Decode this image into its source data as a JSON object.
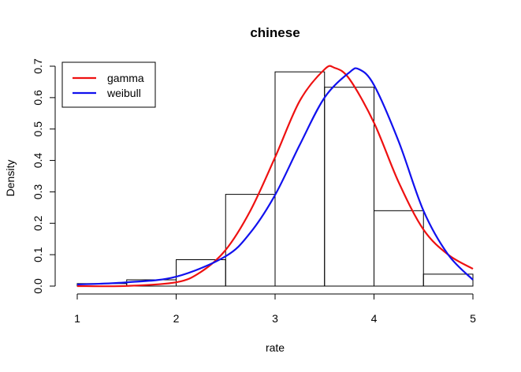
{
  "chart_data": {
    "type": "histogram",
    "title": "chinese",
    "xlabel": "rate",
    "ylabel": "Density",
    "xlim": [
      1,
      5
    ],
    "ylim": [
      0,
      0.7
    ],
    "x_ticks": [
      "1",
      "2",
      "3",
      "4",
      "5"
    ],
    "y_ticks": [
      "0.0",
      "0.1",
      "0.2",
      "0.3",
      "0.4",
      "0.5",
      "0.6",
      "0.7"
    ],
    "bins": [
      {
        "from": 1.0,
        "to": 1.5,
        "density": 0.008
      },
      {
        "from": 1.5,
        "to": 2.0,
        "density": 0.02
      },
      {
        "from": 2.0,
        "to": 2.5,
        "density": 0.084
      },
      {
        "from": 2.5,
        "to": 3.0,
        "density": 0.292
      },
      {
        "from": 3.0,
        "to": 3.5,
        "density": 0.682
      },
      {
        "from": 3.5,
        "to": 4.0,
        "density": 0.633
      },
      {
        "from": 4.0,
        "to": 4.5,
        "density": 0.24
      },
      {
        "from": 4.5,
        "to": 5.0,
        "density": 0.038
      }
    ],
    "series": [
      {
        "name": "gamma",
        "color": "#ee1111",
        "x": [
          1.0,
          1.5,
          2.0,
          2.25,
          2.5,
          2.75,
          3.0,
          3.25,
          3.5,
          3.6,
          3.75,
          4.0,
          4.25,
          4.5,
          4.75,
          5.0
        ],
        "y": [
          0.0,
          0.0005,
          0.012,
          0.045,
          0.115,
          0.24,
          0.41,
          0.59,
          0.69,
          0.695,
          0.66,
          0.52,
          0.33,
          0.18,
          0.1,
          0.055
        ]
      },
      {
        "name": "weibull",
        "color": "#1111ee",
        "x": [
          1.0,
          1.5,
          2.0,
          2.5,
          2.75,
          3.0,
          3.25,
          3.5,
          3.75,
          3.85,
          4.0,
          4.25,
          4.5,
          4.75,
          5.0
        ],
        "y": [
          0.005,
          0.012,
          0.03,
          0.095,
          0.17,
          0.29,
          0.45,
          0.6,
          0.68,
          0.69,
          0.64,
          0.46,
          0.24,
          0.1,
          0.02
        ]
      }
    ],
    "legend": {
      "position": "top-left",
      "entries": [
        "gamma",
        "weibull"
      ]
    }
  }
}
